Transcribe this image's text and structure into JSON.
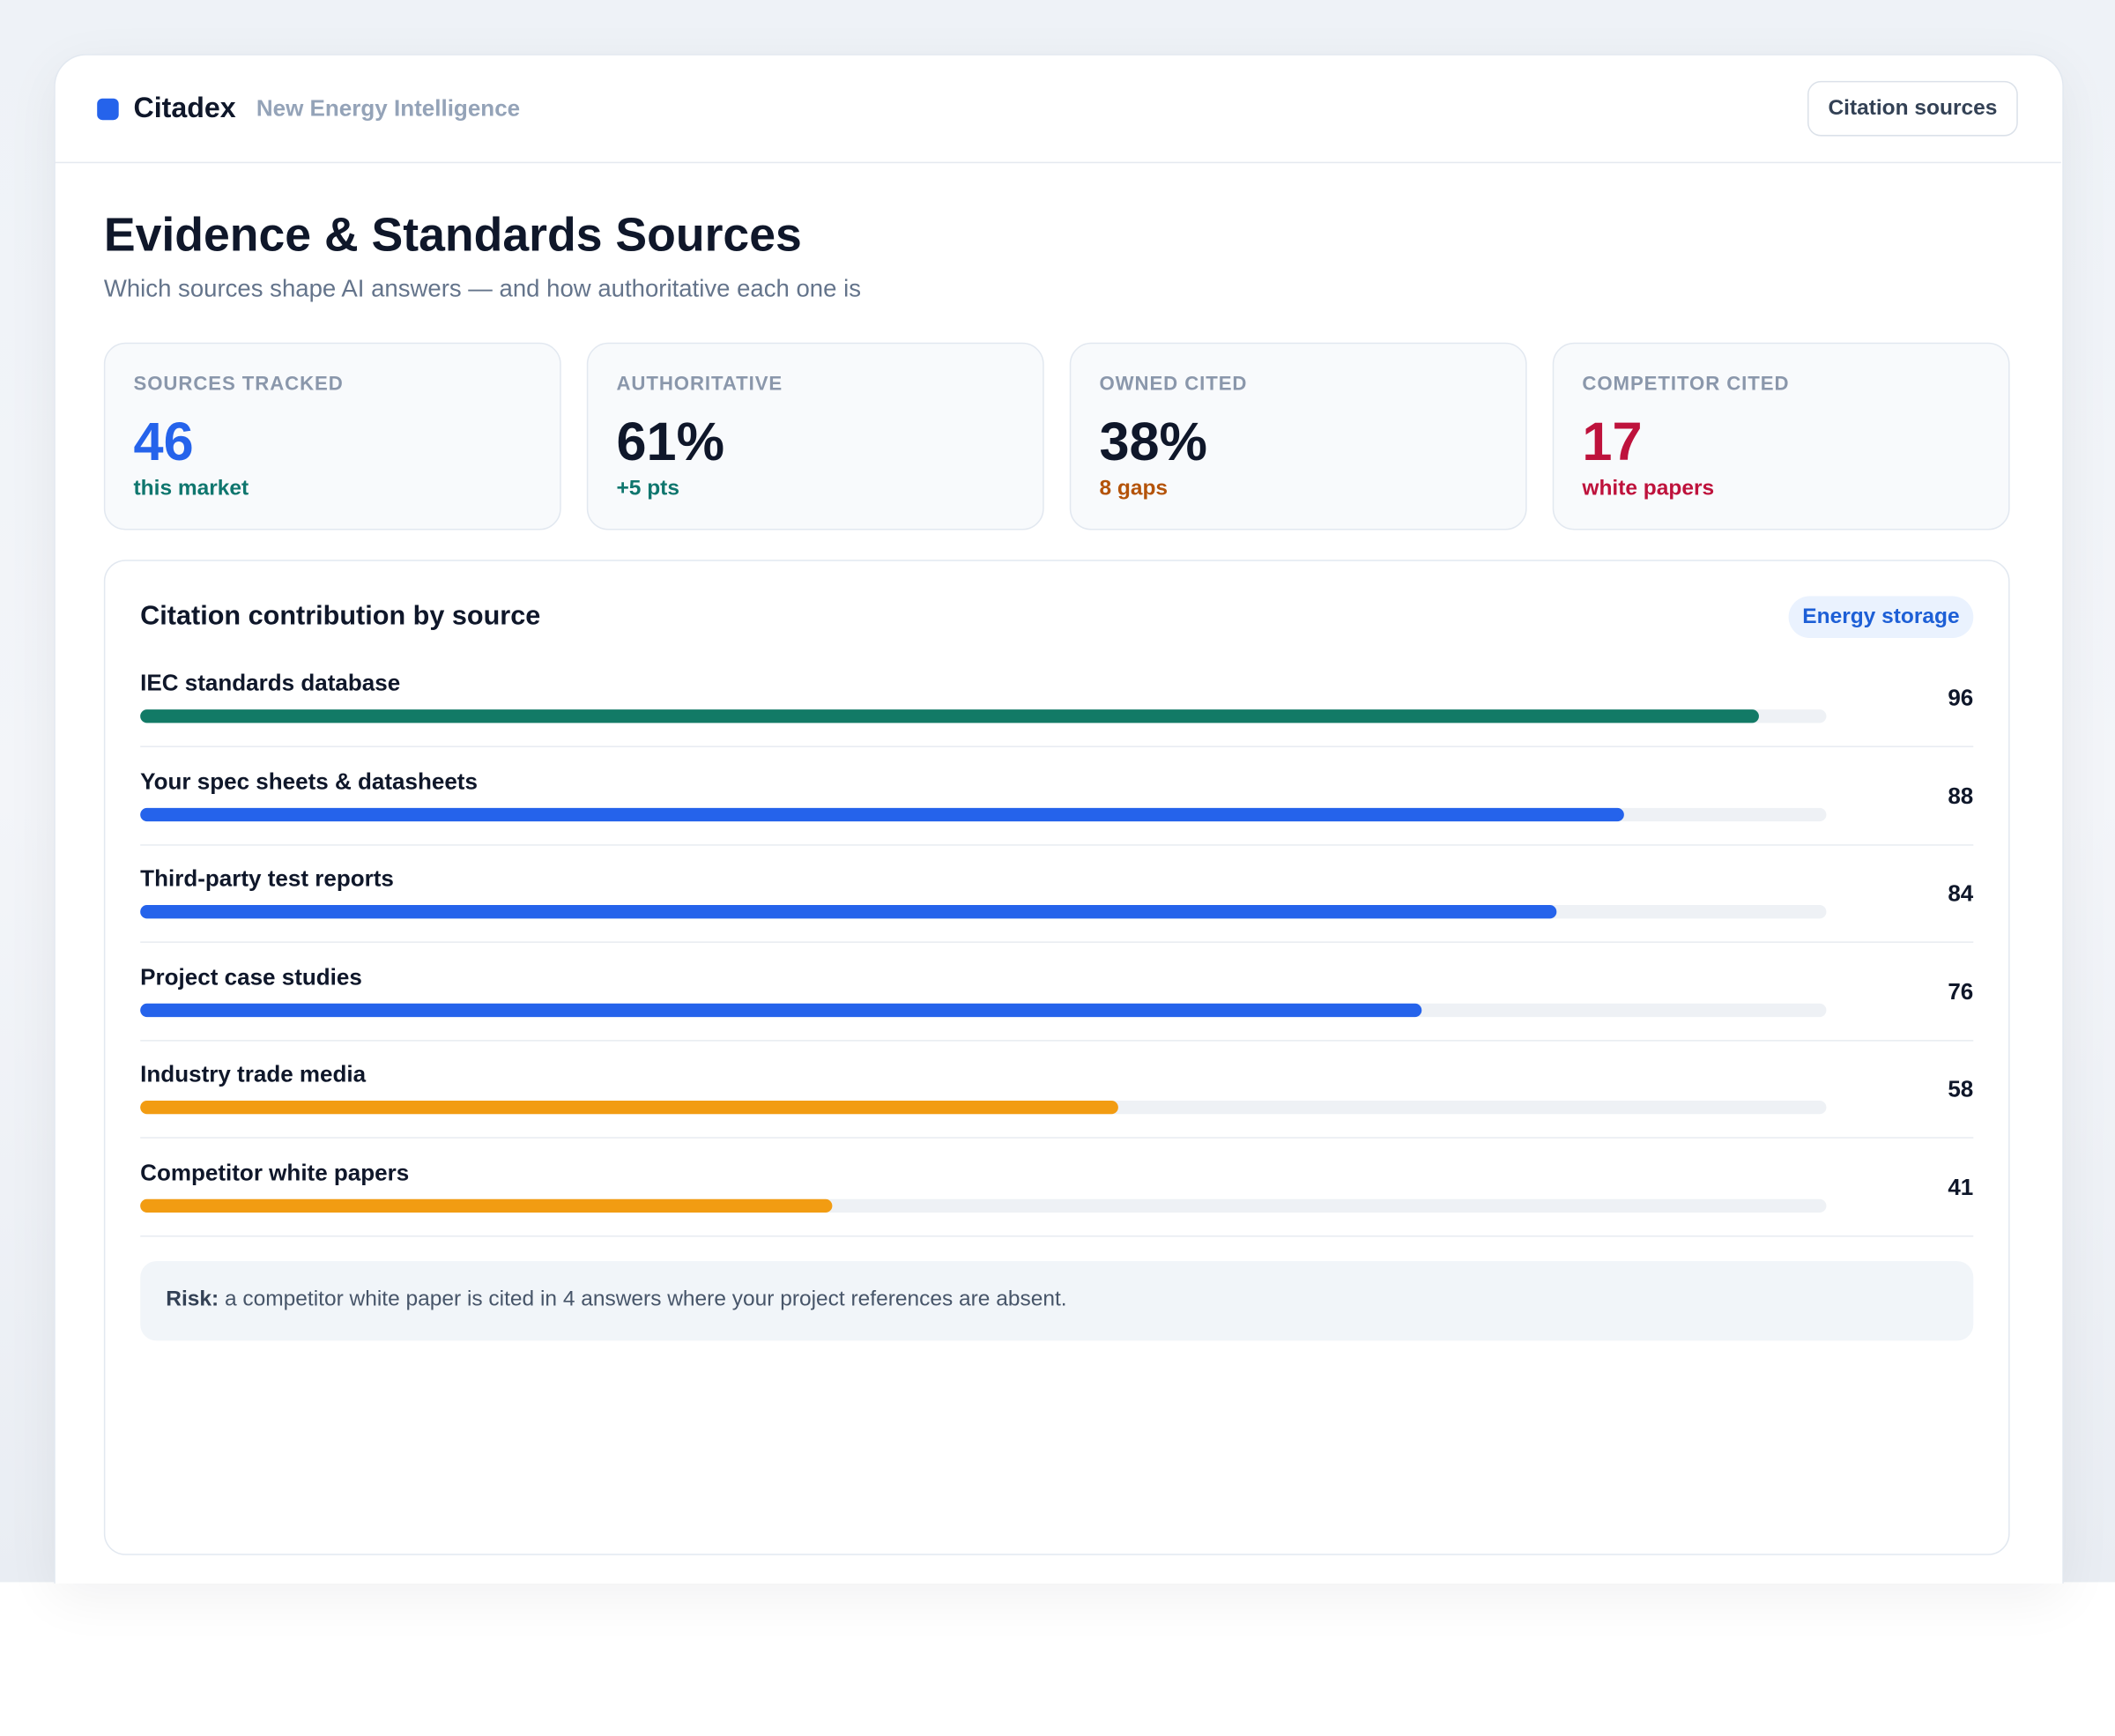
{
  "header": {
    "brand": "Citadex",
    "product": "New Energy Intelligence",
    "button": "Citation sources"
  },
  "page": {
    "title": "Evidence & Standards Sources",
    "subtitle": "Which sources shape AI answers — and how authoritative each one is"
  },
  "kpis": [
    {
      "label": "SOURCES TRACKED",
      "value": "46",
      "note": "this market",
      "color": "#2563eb",
      "note_color": "#0f766e"
    },
    {
      "label": "AUTHORITATIVE",
      "value": "61%",
      "note": "+5 pts",
      "color": "#0f172a",
      "note_color": "#0f766e"
    },
    {
      "label": "OWNED CITED",
      "value": "38%",
      "note": "8 gaps",
      "color": "#0f172a",
      "note_color": "#b45309"
    },
    {
      "label": "COMPETITOR CITED",
      "value": "17",
      "note": "white papers",
      "color": "#be123c",
      "note_color": "#be123c"
    }
  ],
  "chart_data": {
    "type": "bar",
    "title": "Citation contribution by source",
    "tag": "Energy storage",
    "categories": [
      "IEC standards database",
      "Your spec sheets & datasheets",
      "Third-party test reports",
      "Project case studies",
      "Industry trade media",
      "Competitor white papers"
    ],
    "values": [
      96,
      88,
      84,
      76,
      58,
      41
    ],
    "colors": [
      "#127a66",
      "#2563eb",
      "#2563eb",
      "#2563eb",
      "#f29c12",
      "#f29c12"
    ],
    "xlim": [
      0,
      100
    ]
  },
  "note": {
    "label": "Risk:",
    "text": "a competitor white paper is cited in 4 answers where your project references are absent."
  }
}
